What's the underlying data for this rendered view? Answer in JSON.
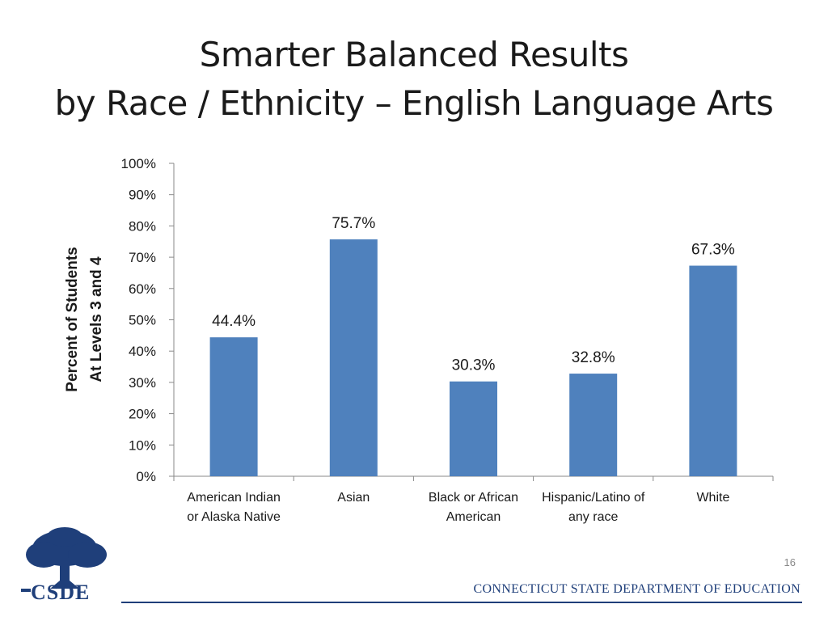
{
  "title": {
    "line1": "Smarter Balanced Results",
    "line2": "by Race / Ethnicity – English Language Arts"
  },
  "chart_data": {
    "type": "bar",
    "categories": [
      [
        "American Indian",
        "or Alaska Native"
      ],
      [
        "Asian"
      ],
      [
        "Black or African",
        "American"
      ],
      [
        "Hispanic/Latino of",
        "any race"
      ],
      [
        "White"
      ]
    ],
    "values": [
      44.4,
      75.7,
      30.3,
      32.8,
      67.3
    ],
    "value_labels": [
      "44.4%",
      "75.7%",
      "30.3%",
      "32.8%",
      "67.3%"
    ],
    "ylabel": [
      "Percent of Students",
      "At Levels 3 and 4"
    ],
    "ylim": [
      0,
      100
    ],
    "yticks": [
      "0%",
      "10%",
      "20%",
      "30%",
      "40%",
      "50%",
      "60%",
      "70%",
      "80%",
      "90%",
      "100%"
    ],
    "bar_color": "#4f81bd",
    "grid": false,
    "legend": "none"
  },
  "footer": {
    "page_number": "16",
    "organization": "CONNECTICUT STATE DEPARTMENT OF EDUCATION",
    "logo_text": "CSDE",
    "brand_color": "#1f3f7a"
  }
}
